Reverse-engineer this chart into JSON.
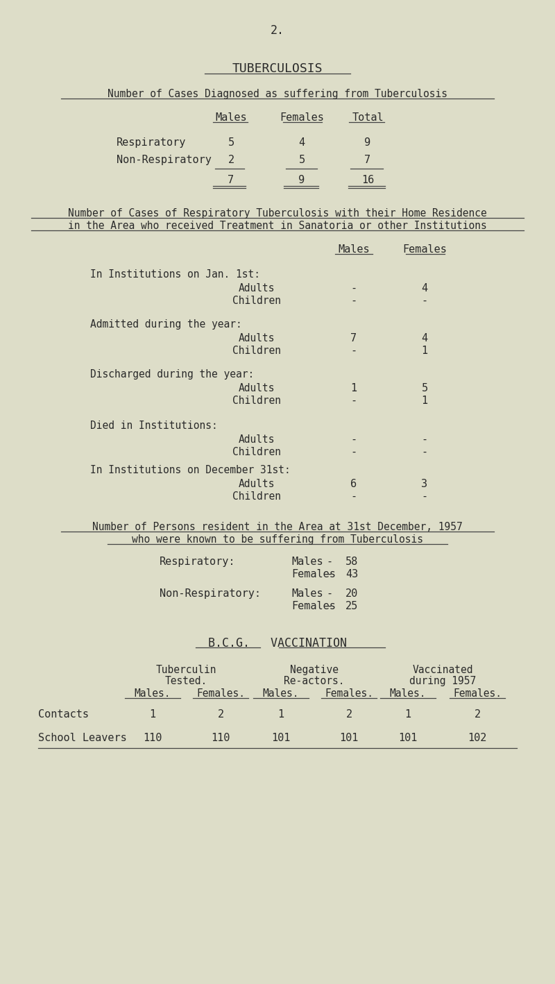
{
  "bg_color": "#ddddc8",
  "text_color": "#2a2a2a",
  "page_number": "2.",
  "title": "TUBERCULOSIS",
  "section1_heading": "Number of Cases Diagnosed as suffering from Tuberculosis",
  "table1_headers": [
    "Males",
    "Females",
    "Total"
  ],
  "table1_rows": [
    {
      "label": "Respiratory",
      "values": [
        "5",
        "4",
        "9"
      ]
    },
    {
      "label": "Non-Respiratory",
      "values": [
        "2",
        "5",
        "7"
      ]
    }
  ],
  "table1_totals": [
    "7",
    "9",
    "16"
  ],
  "section2_heading_line1": "Number of Cases of Respiratory Tuberculosis with their Home Residence",
  "section2_heading_line2": "in the Area who received Treatment in Sanatoria or other Institutions",
  "table2_headers": [
    "Males",
    "Females"
  ],
  "section_items": [
    {
      "section": "In Institutions on Jan. 1st:",
      "items": [
        {
          "label": "Adults",
          "males": "-",
          "females": "4"
        },
        {
          "label": "Children",
          "males": "-",
          "females": "-"
        }
      ]
    },
    {
      "section": "Admitted during the year:",
      "items": [
        {
          "label": "Adults",
          "males": "7",
          "females": "4"
        },
        {
          "label": "Children",
          "males": "-",
          "females": "1"
        }
      ]
    },
    {
      "section": "Discharged during the year:",
      "items": [
        {
          "label": "Adults",
          "males": "1",
          "females": "5"
        },
        {
          "label": "Children",
          "males": "-",
          "females": "1"
        }
      ]
    },
    {
      "section": "Died in Institutions:",
      "items": [
        {
          "label": "Adults",
          "males": "-",
          "females": "-"
        },
        {
          "label": "Children",
          "males": "-",
          "females": "-"
        }
      ]
    },
    {
      "section": "In Institutions on December 31st:",
      "items": [
        {
          "label": "Adults",
          "males": "6",
          "females": "3"
        },
        {
          "label": "Children",
          "males": "-",
          "females": "-"
        }
      ]
    }
  ],
  "section3_heading_line1": "Number of Persons resident in the Area at 31st December, 1957",
  "section3_heading_line2": "who were known to be suffering from Tuberculosis",
  "section3_data": [
    {
      "label": "Respiratory:",
      "sub": [
        {
          "name": "Males",
          "value": "58"
        },
        {
          "name": "Females",
          "value": "43"
        }
      ]
    },
    {
      "label": "Non-Respiratory:",
      "sub": [
        {
          "name": "Males",
          "value": "20"
        },
        {
          "name": "Females",
          "value": "25"
        }
      ]
    }
  ],
  "section4_heading": "B.C.G.   VACCINATION",
  "section4_col_groups": [
    {
      "line1": "Tuberculin",
      "line2": "Tested."
    },
    {
      "line1": "Negative",
      "line2": "Re-actors."
    },
    {
      "line1": "Vaccinated",
      "line2": "during 1957"
    }
  ],
  "section4_subheaders": [
    "Males.",
    "Females.",
    "Males.",
    "Females.",
    "Males.",
    "Females."
  ],
  "section4_rows": [
    {
      "label": "Contacts",
      "values": [
        "1",
        "2",
        "1",
        "2",
        "1",
        "2"
      ]
    },
    {
      "label": "School Leavers",
      "values": [
        "110",
        "110",
        "101",
        "101",
        "101",
        "102"
      ]
    }
  ]
}
